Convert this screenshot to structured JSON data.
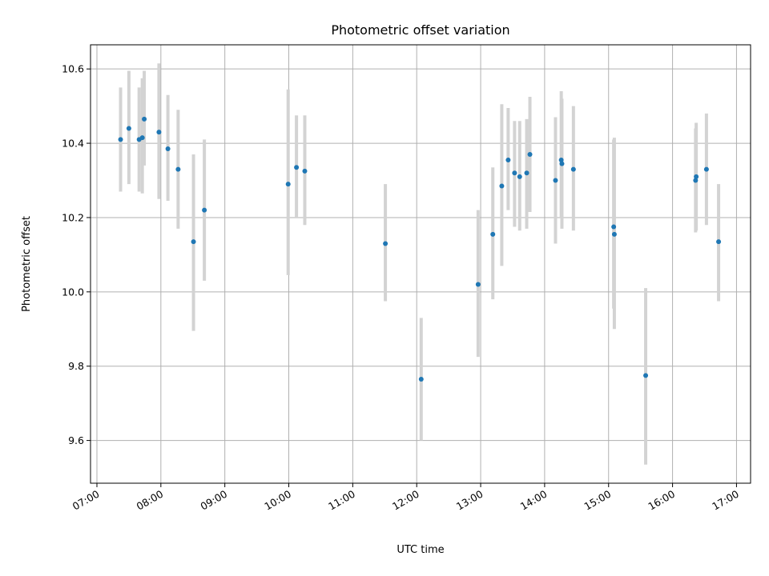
{
  "chart_data": {
    "type": "scatter",
    "title": "Photometric offset variation",
    "xlabel": "UTC time",
    "ylabel": "Photometric offset",
    "xlim_hours": [
      6.9,
      17.22
    ],
    "ylim": [
      9.485,
      10.665
    ],
    "grid": true,
    "x_ticks": [
      {
        "hour": 7,
        "label": "07:00"
      },
      {
        "hour": 8,
        "label": "08:00"
      },
      {
        "hour": 9,
        "label": "09:00"
      },
      {
        "hour": 10,
        "label": "10:00"
      },
      {
        "hour": 11,
        "label": "11:00"
      },
      {
        "hour": 12,
        "label": "12:00"
      },
      {
        "hour": 13,
        "label": "13:00"
      },
      {
        "hour": 14,
        "label": "14:00"
      },
      {
        "hour": 15,
        "label": "15:00"
      },
      {
        "hour": 16,
        "label": "16:00"
      },
      {
        "hour": 17,
        "label": "17:00"
      }
    ],
    "y_ticks": [
      {
        "value": 9.6,
        "label": "9.6"
      },
      {
        "value": 9.8,
        "label": "9.8"
      },
      {
        "value": 10.0,
        "label": "10.0"
      },
      {
        "value": 10.2,
        "label": "10.2"
      },
      {
        "value": 10.4,
        "label": "10.4"
      },
      {
        "value": 10.6,
        "label": "10.6"
      }
    ],
    "series": [
      {
        "name": "offset",
        "marker_color": "#1f77b4",
        "errorbar_color": "#d3d3d3",
        "points": [
          {
            "x": 7.37,
            "y": 10.41,
            "lo": 10.27,
            "hi": 10.55
          },
          {
            "x": 7.5,
            "y": 10.44,
            "lo": 10.29,
            "hi": 10.595
          },
          {
            "x": 7.66,
            "y": 10.41,
            "lo": 10.27,
            "hi": 10.55
          },
          {
            "x": 7.71,
            "y": 10.415,
            "lo": 10.265,
            "hi": 10.575
          },
          {
            "x": 7.74,
            "y": 10.465,
            "lo": 10.34,
            "hi": 10.595
          },
          {
            "x": 7.97,
            "y": 10.43,
            "lo": 10.25,
            "hi": 10.615
          },
          {
            "x": 8.11,
            "y": 10.385,
            "lo": 10.245,
            "hi": 10.53
          },
          {
            "x": 8.27,
            "y": 10.33,
            "lo": 10.17,
            "hi": 10.49
          },
          {
            "x": 8.51,
            "y": 10.135,
            "lo": 9.895,
            "hi": 10.37
          },
          {
            "x": 8.68,
            "y": 10.22,
            "lo": 10.03,
            "hi": 10.41
          },
          {
            "x": 9.99,
            "y": 10.29,
            "lo": 10.045,
            "hi": 10.545
          },
          {
            "x": 10.12,
            "y": 10.335,
            "lo": 10.2,
            "hi": 10.475
          },
          {
            "x": 10.25,
            "y": 10.325,
            "lo": 10.18,
            "hi": 10.475
          },
          {
            "x": 11.51,
            "y": 10.13,
            "lo": 9.975,
            "hi": 10.29
          },
          {
            "x": 12.07,
            "y": 9.765,
            "lo": 9.6,
            "hi": 9.93
          },
          {
            "x": 12.96,
            "y": 10.02,
            "lo": 9.825,
            "hi": 10.22
          },
          {
            "x": 13.19,
            "y": 10.155,
            "lo": 9.98,
            "hi": 10.335
          },
          {
            "x": 13.33,
            "y": 10.285,
            "lo": 10.07,
            "hi": 10.505
          },
          {
            "x": 13.43,
            "y": 10.355,
            "lo": 10.22,
            "hi": 10.495
          },
          {
            "x": 13.53,
            "y": 10.32,
            "lo": 10.175,
            "hi": 10.46
          },
          {
            "x": 13.61,
            "y": 10.31,
            "lo": 10.165,
            "hi": 10.46
          },
          {
            "x": 13.72,
            "y": 10.32,
            "lo": 10.17,
            "hi": 10.465
          },
          {
            "x": 13.77,
            "y": 10.37,
            "lo": 10.215,
            "hi": 10.525
          },
          {
            "x": 14.17,
            "y": 10.3,
            "lo": 10.13,
            "hi": 10.47
          },
          {
            "x": 14.26,
            "y": 10.355,
            "lo": 10.2,
            "hi": 10.54
          },
          {
            "x": 14.27,
            "y": 10.345,
            "lo": 10.17,
            "hi": 10.52
          },
          {
            "x": 14.45,
            "y": 10.33,
            "lo": 10.165,
            "hi": 10.5
          },
          {
            "x": 15.08,
            "y": 10.175,
            "lo": 9.955,
            "hi": 10.41
          },
          {
            "x": 15.09,
            "y": 10.155,
            "lo": 9.9,
            "hi": 10.415
          },
          {
            "x": 15.58,
            "y": 9.775,
            "lo": 9.535,
            "hi": 10.01
          },
          {
            "x": 16.36,
            "y": 10.3,
            "lo": 10.16,
            "hi": 10.44
          },
          {
            "x": 16.37,
            "y": 10.31,
            "lo": 10.165,
            "hi": 10.455
          },
          {
            "x": 16.53,
            "y": 10.33,
            "lo": 10.18,
            "hi": 10.48
          },
          {
            "x": 16.72,
            "y": 10.135,
            "lo": 9.975,
            "hi": 10.29
          }
        ]
      }
    ]
  }
}
